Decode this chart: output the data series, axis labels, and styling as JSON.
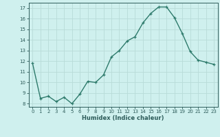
{
  "x": [
    0,
    1,
    2,
    3,
    4,
    5,
    6,
    7,
    8,
    9,
    10,
    11,
    12,
    13,
    14,
    15,
    16,
    17,
    18,
    19,
    20,
    21,
    22,
    23
  ],
  "y": [
    11.8,
    8.5,
    8.7,
    8.2,
    8.6,
    8.0,
    8.9,
    10.1,
    10.0,
    10.7,
    12.4,
    13.0,
    13.9,
    14.3,
    15.6,
    16.5,
    17.1,
    17.1,
    16.1,
    14.6,
    12.9,
    12.1,
    11.9,
    11.7
  ],
  "xlabel": "Humidex (Indice chaleur)",
  "line_color": "#2d7a6b",
  "marker": "+",
  "bg_color": "#cff0ee",
  "grid_color": "#b8dbd8",
  "text_color": "#2d5c5a",
  "ylim": [
    7.7,
    17.5
  ],
  "xlim": [
    -0.5,
    23.5
  ],
  "yticks": [
    8,
    9,
    10,
    11,
    12,
    13,
    14,
    15,
    16,
    17
  ],
  "xticks": [
    0,
    1,
    2,
    3,
    4,
    5,
    6,
    7,
    8,
    9,
    10,
    11,
    12,
    13,
    14,
    15,
    16,
    17,
    18,
    19,
    20,
    21,
    22,
    23
  ]
}
